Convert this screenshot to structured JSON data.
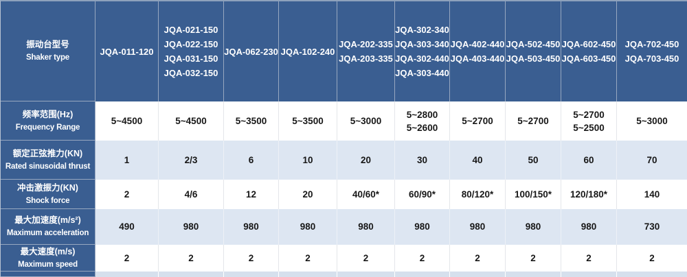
{
  "title": "Shaker specification table",
  "colors": {
    "header_blue": "#3a5e91",
    "row_light_blue": "#dde6f2",
    "row_white": "#ffffff",
    "grid_line_on_blue": "#98a8c0",
    "text_dark": "#171717",
    "text_white": "#ffffff"
  },
  "table": {
    "corner": {
      "zh": "振动台型号",
      "en": "Shaker type"
    },
    "models": [
      "JQA-011-120",
      "JQA-021-150\nJQA-022-150\nJQA-031-150\nJQA-032-150",
      "JQA-062-230",
      "JQA-102-240",
      "JQA-202-335\nJQA-203-335",
      "JQA-302-340\nJQA-303-340\nJQA-302-440\nJQA-303-440",
      "JQA-402-440\nJQA-403-440",
      "JQA-502-450\nJQA-503-450",
      "JQA-602-450\nJQA-603-450",
      "JQA-702-450\nJQA-703-450"
    ],
    "rows": [
      {
        "name": "frequency-range",
        "label_zh": "频率范围(Hz)",
        "label_en": "Frequency Range",
        "values": [
          "5~4500",
          "5~4500",
          "5~3500",
          "5~3500",
          "5~3000",
          "5~2800\n5~2600",
          "5~2700",
          "5~2700",
          "5~2700\n5~2500",
          "5~3000"
        ]
      },
      {
        "name": "rated-sinusoidal-thrust",
        "label_zh": "额定正弦推力(KN)",
        "label_en": "Rated sinusoidal thrust",
        "values": [
          "1",
          "2/3",
          "6",
          "10",
          "20",
          "30",
          "40",
          "50",
          "60",
          "70"
        ]
      },
      {
        "name": "shock-force",
        "label_zh": "冲击激振力(KN)",
        "label_en": "Shock force",
        "values": [
          "2",
          "4/6",
          "12",
          "20",
          "40/60*",
          "60/90*",
          "80/120*",
          "100/150*",
          "120/180*",
          "140"
        ]
      },
      {
        "name": "maximum-acceleration",
        "label_zh": "最大加速度(m/s²)",
        "label_en": "Maximum acceleration",
        "values": [
          "490",
          "980",
          "980",
          "980",
          "980",
          "980",
          "980",
          "980",
          "980",
          "730"
        ]
      },
      {
        "name": "maximum-speed",
        "label_zh": "最大速度(m/s)",
        "label_en": "Maximum speed",
        "values": [
          "2",
          "2",
          "2",
          "2",
          "2",
          "2",
          "2",
          "2",
          "2",
          "2"
        ]
      }
    ]
  }
}
